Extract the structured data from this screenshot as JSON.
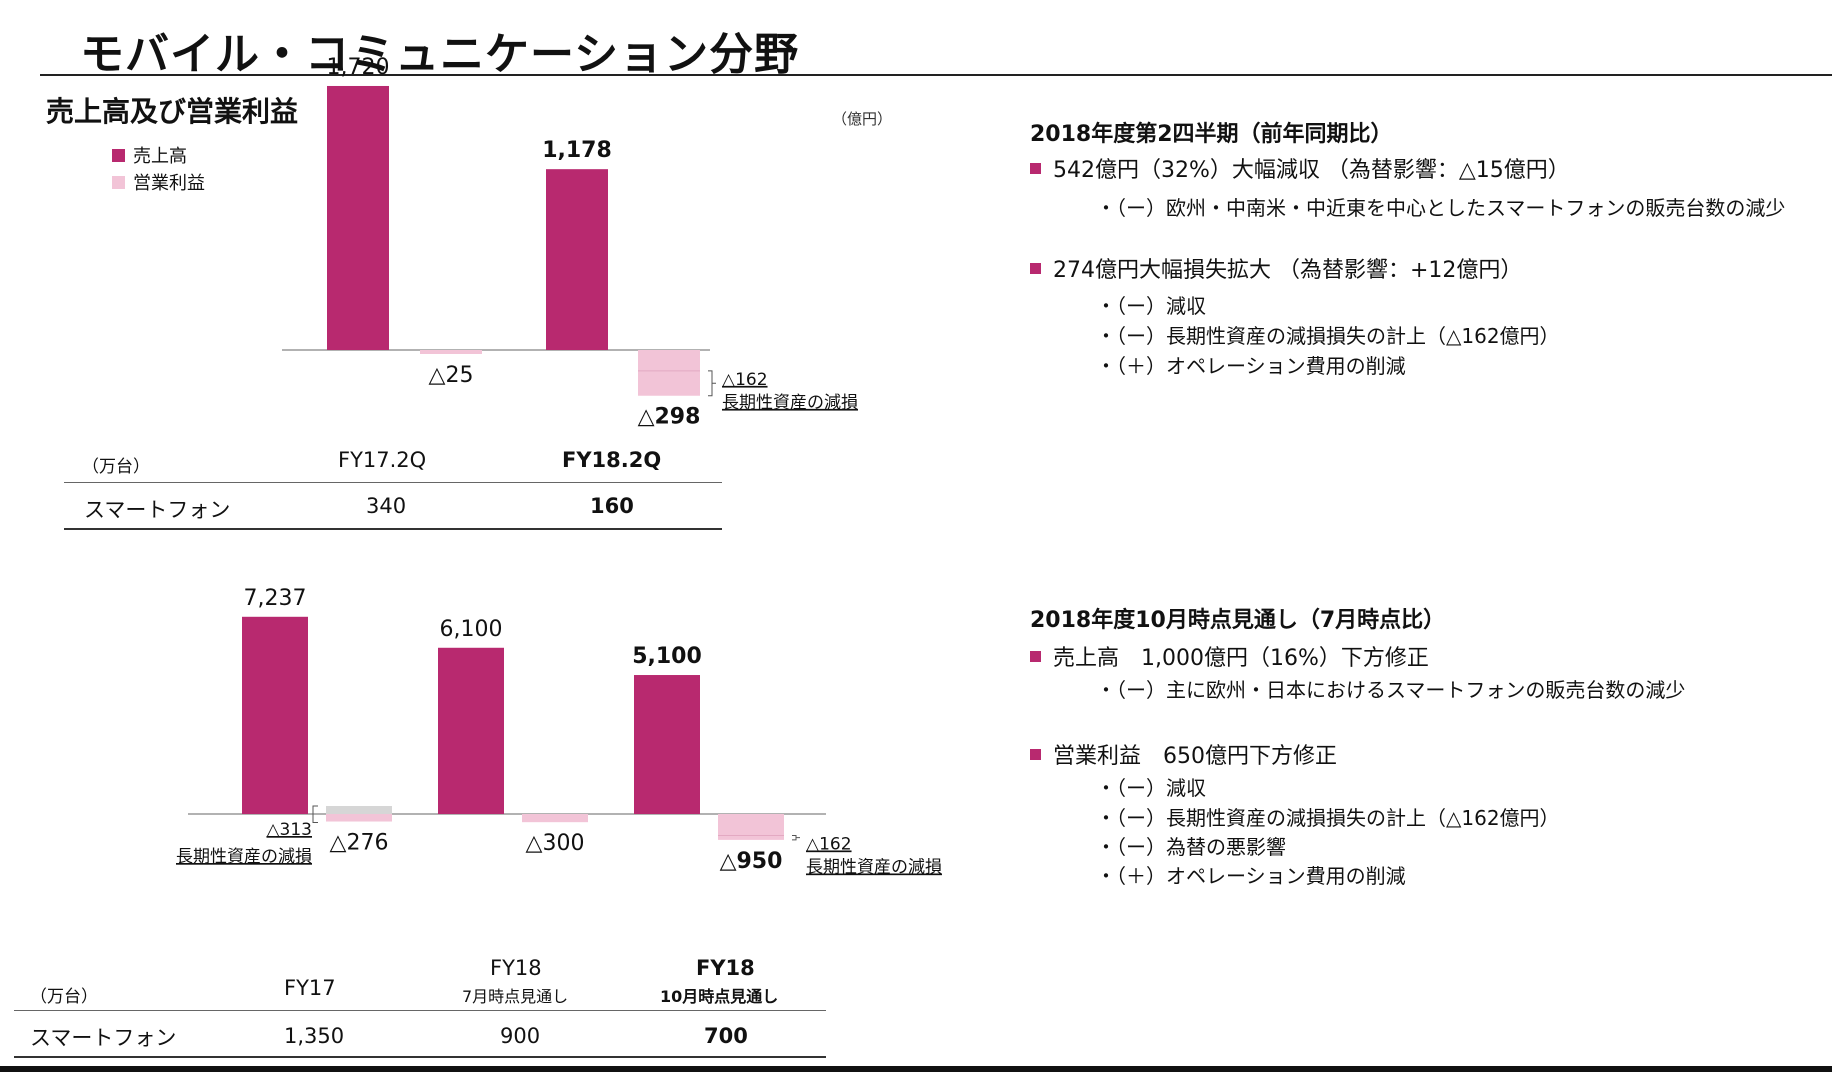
{
  "page": {
    "title": "モバイル・コミュニケーション分野",
    "subtitle": "売上高及び営業利益",
    "unit_yen": "（億円）"
  },
  "legend": [
    {
      "label": "売上高",
      "color": "#b8296f"
    },
    {
      "label": "営業利益",
      "color": "#f2c4d7"
    }
  ],
  "chart_data": [
    {
      "type": "bar",
      "categories": [
        "FY17.2Q",
        "FY18.2Q"
      ],
      "series": [
        {
          "name": "売上高",
          "values": [
            1720,
            1178
          ]
        },
        {
          "name": "営業利益",
          "values": [
            -25,
            -298
          ]
        }
      ],
      "value_labels": {
        "売上高": [
          "1,720",
          "1,178"
        ],
        "営業利益": [
          "△25",
          "△298"
        ]
      },
      "annotations": [
        {
          "category": "FY18.2Q",
          "value": -162,
          "text_value": "△162",
          "text": "長期性資産の減損"
        }
      ]
    },
    {
      "type": "bar",
      "categories": [
        "FY17",
        "FY18 7月時点見通し",
        "FY18 10月時点見通し"
      ],
      "series": [
        {
          "name": "売上高",
          "values": [
            7237,
            6100,
            5100
          ]
        },
        {
          "name": "営業利益",
          "values": [
            -276,
            -300,
            -950
          ]
        }
      ],
      "value_labels": {
        "売上高": [
          "7,237",
          "6,100",
          "5,100"
        ],
        "営業利益": [
          "△276",
          "△300",
          "△950"
        ]
      },
      "annotations": [
        {
          "category": "FY17",
          "value": -313,
          "text_value": "△313",
          "text": "長期性資産の減損"
        },
        {
          "category": "FY18 10月時点見通し",
          "value": -162,
          "text_value": "△162",
          "text": "長期性資産の減損"
        }
      ]
    }
  ],
  "table1": {
    "unit": "（万台）",
    "headers": [
      "FY17.2Q",
      "FY18.2Q"
    ],
    "row_label": "スマートフォン",
    "values": [
      "340",
      "160"
    ]
  },
  "table2": {
    "unit": "（万台）",
    "headers": [
      {
        "main": "FY17",
        "sub": ""
      },
      {
        "main": "FY18",
        "sub": "7月時点見通し"
      },
      {
        "main": "FY18",
        "sub": "10月時点見通し"
      }
    ],
    "row_label": "スマートフォン",
    "values": [
      "1,350",
      "900",
      "700"
    ]
  },
  "section1": {
    "heading": "2018年度第2四半期（前年同期比）",
    "bullets": [
      {
        "text": "542億円（32%）大幅減収 （為替影響：△15億円）",
        "subs": [
          "・（ー）欧州・中南米・中近東を中心としたスマートフォンの販売台数の減少"
        ]
      },
      {
        "text": "274億円大幅損失拡大 （為替影響：+12億円）",
        "subs": [
          "・（ー）減収",
          "・（ー）長期性資産の減損損失の計上（△162億円）",
          "・（＋）オペレーション費用の削減"
        ]
      }
    ]
  },
  "section2": {
    "heading": "2018年度10月時点見通し（7月時点比）",
    "bullets": [
      {
        "text": "売上高　1,000億円（16%）下方修正",
        "subs": [
          "・（ー）主に欧州・日本におけるスマートフォンの販売台数の減少"
        ]
      },
      {
        "text": "営業利益　650億円下方修正",
        "subs": [
          "・（ー）減収",
          "・（ー）長期性資産の減損損失の計上（△162億円）",
          "・（ー）為替の悪影響",
          "・（＋）オペレーション費用の削減"
        ]
      }
    ]
  }
}
